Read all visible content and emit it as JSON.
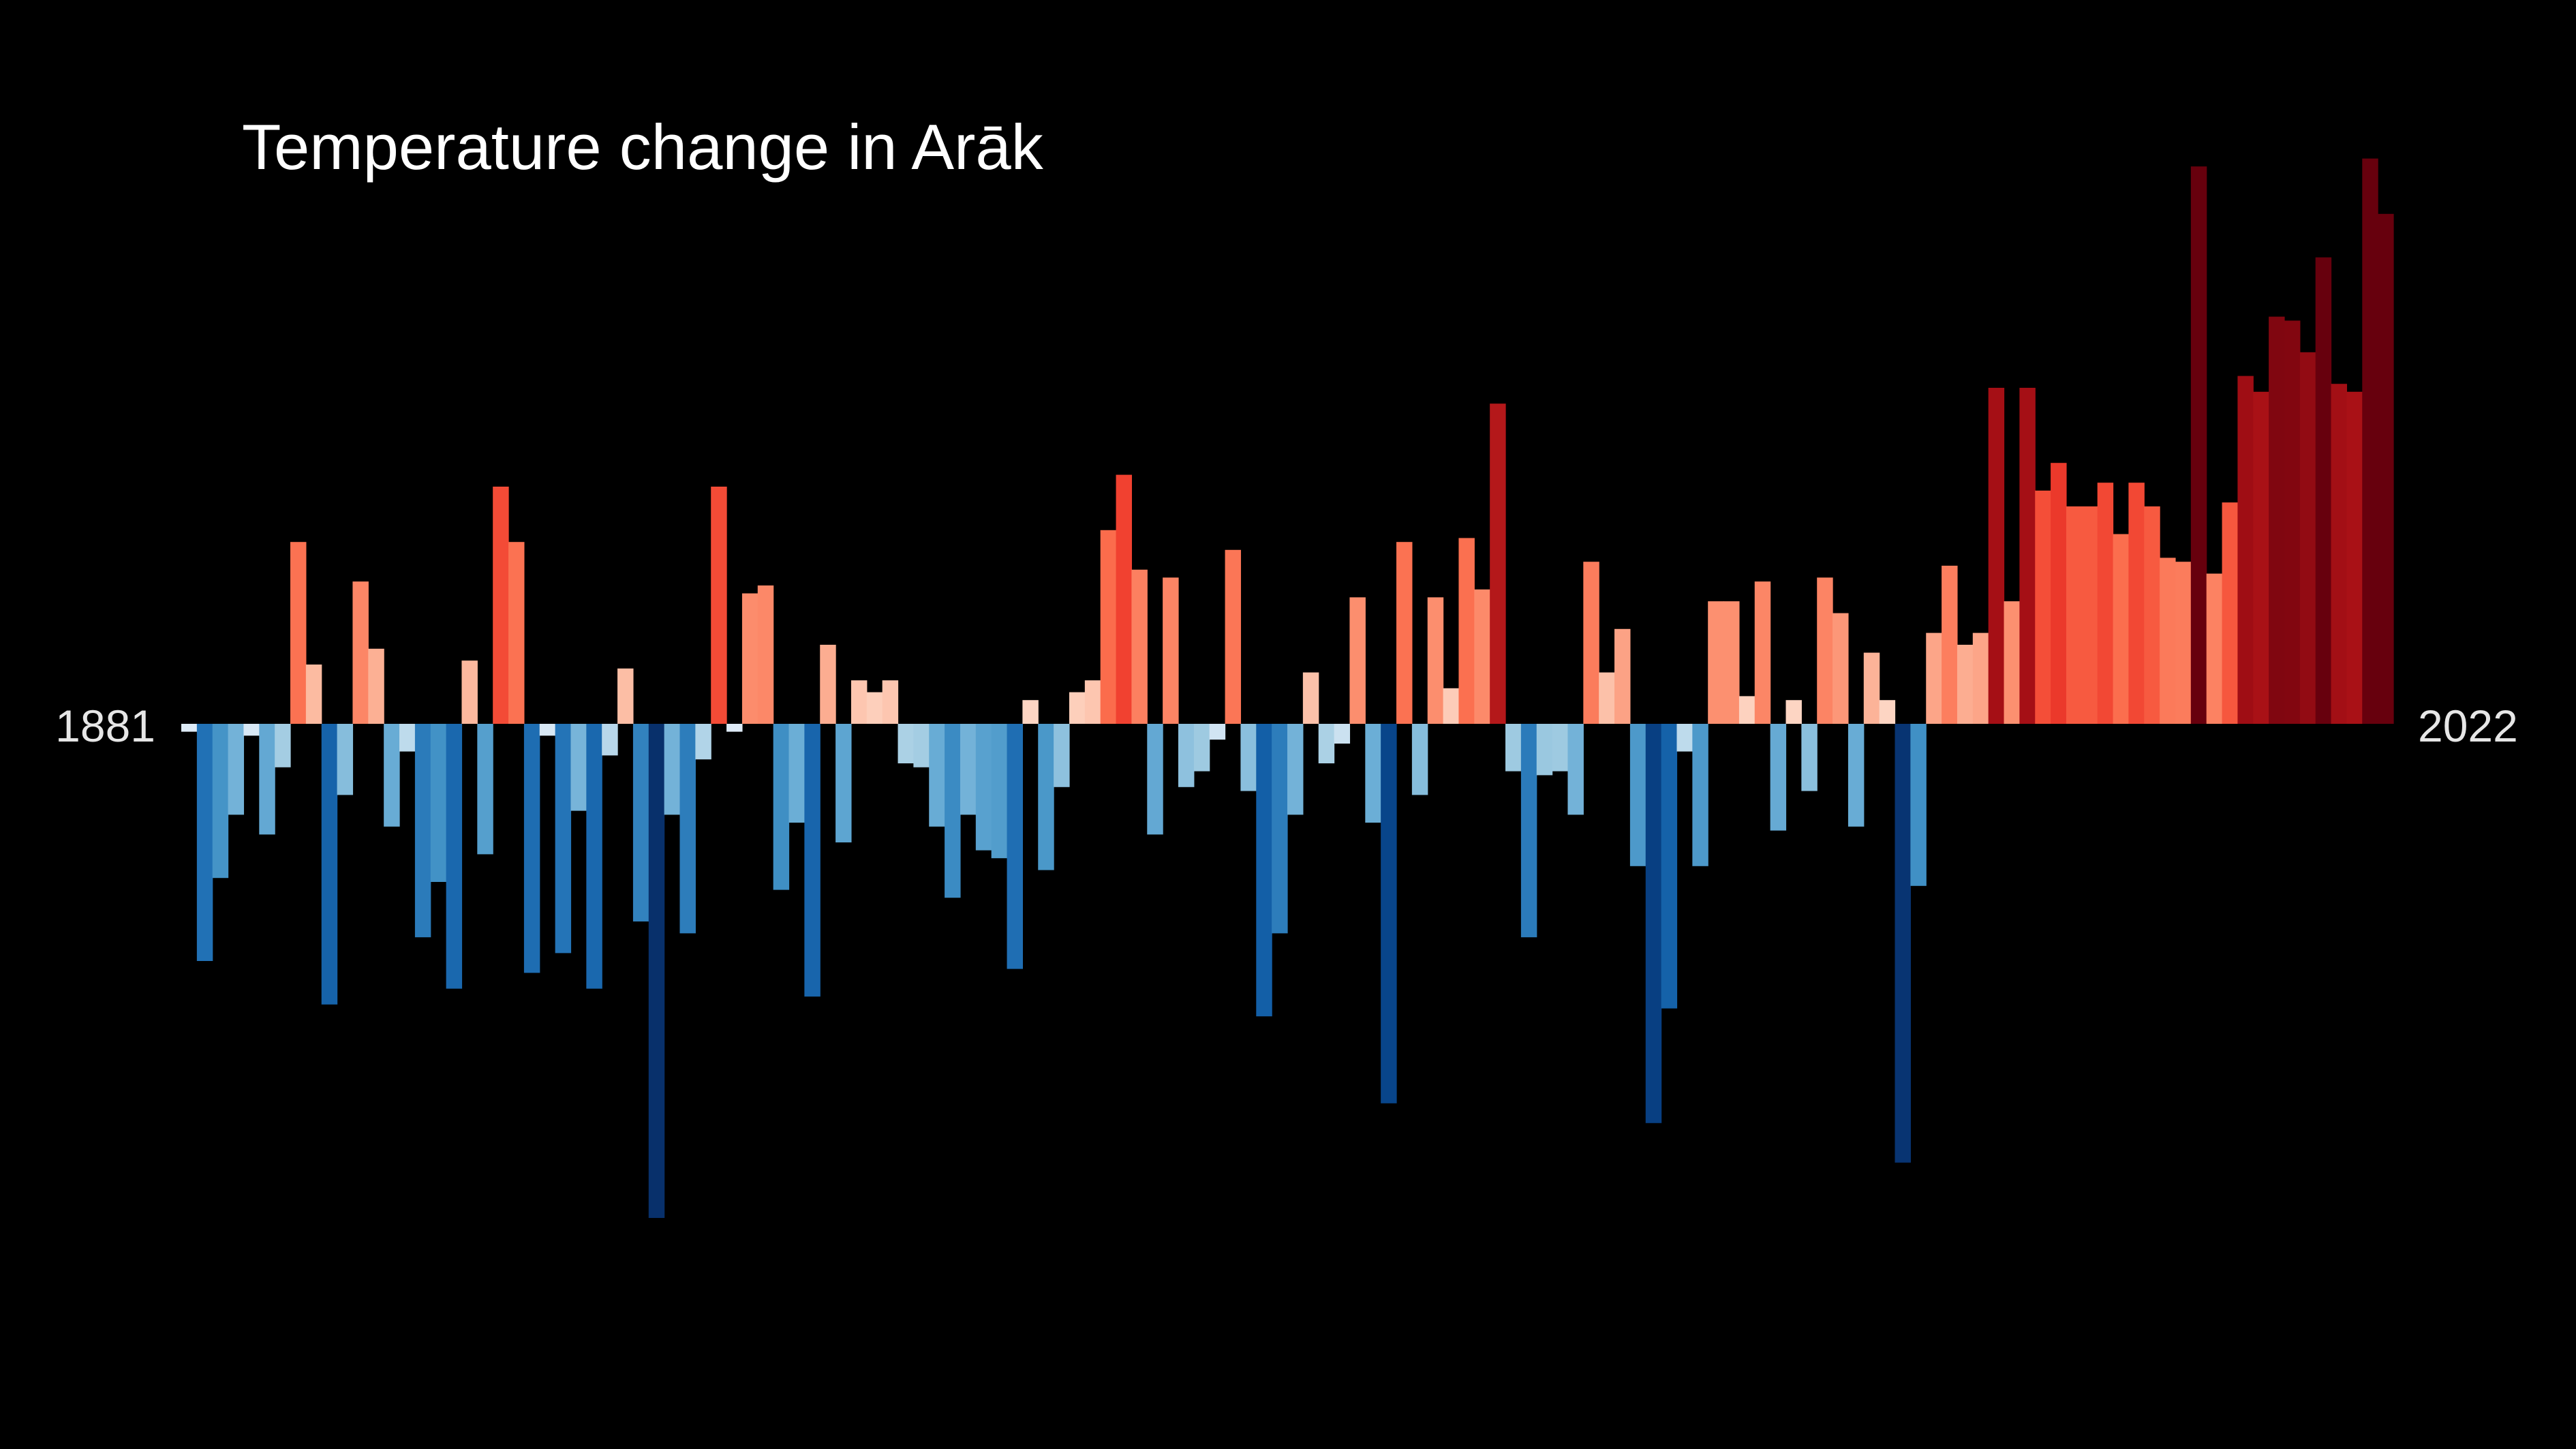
{
  "chart_data": {
    "type": "bar",
    "title": "Temperature change in Arāk",
    "start_label": "1881",
    "end_label": "2022",
    "x_start": 1881,
    "x_end": 2022,
    "ylim": [
      -1.25,
      1.4
    ],
    "legend": "none",
    "grid": false,
    "values": [
      -0.02,
      -0.6,
      -0.39,
      -0.23,
      -0.03,
      -0.28,
      -0.11,
      0.46,
      0.15,
      -0.71,
      -0.18,
      0.36,
      0.19,
      -0.26,
      -0.07,
      -0.54,
      -0.4,
      -0.67,
      0.16,
      -0.33,
      0.6,
      0.46,
      -0.63,
      -0.03,
      -0.58,
      -0.22,
      -0.67,
      -0.08,
      0.14,
      -0.5,
      -1.25,
      -0.23,
      -0.53,
      -0.09,
      0.6,
      -0.02,
      0.33,
      0.35,
      -0.42,
      -0.25,
      -0.69,
      0.2,
      -0.3,
      0.11,
      0.08,
      0.11,
      -0.1,
      -0.11,
      -0.26,
      -0.44,
      -0.23,
      -0.32,
      -0.34,
      -0.62,
      0.06,
      -0.37,
      -0.16,
      0.08,
      0.11,
      0.49,
      0.63,
      0.39,
      -0.28,
      0.37,
      -0.16,
      -0.12,
      -0.04,
      0.44,
      -0.17,
      -0.74,
      -0.53,
      -0.23,
      0.13,
      -0.1,
      -0.05,
      0.32,
      -0.25,
      -0.96,
      0.46,
      -0.18,
      0.32,
      0.09,
      0.47,
      0.34,
      0.81,
      -0.12,
      -0.54,
      -0.13,
      -0.12,
      -0.23,
      0.41,
      0.13,
      0.24,
      -0.36,
      -1.01,
      -0.72,
      -0.07,
      -0.36,
      0.31,
      0.31,
      0.07,
      0.36,
      -0.27,
      0.06,
      -0.17,
      0.37,
      0.28,
      -0.26,
      0.18,
      0.06,
      -1.11,
      -0.41,
      0.23,
      0.4,
      0.2,
      0.23,
      0.85,
      0.31,
      0.85,
      0.59,
      0.66,
      0.55,
      0.55,
      0.61,
      0.48,
      0.61,
      0.55,
      0.42,
      0.41,
      1.41,
      0.38,
      0.56,
      0.88,
      0.84,
      1.03,
      1.02,
      0.94,
      1.18,
      0.86,
      0.84,
      1.43,
      1.29
    ]
  }
}
